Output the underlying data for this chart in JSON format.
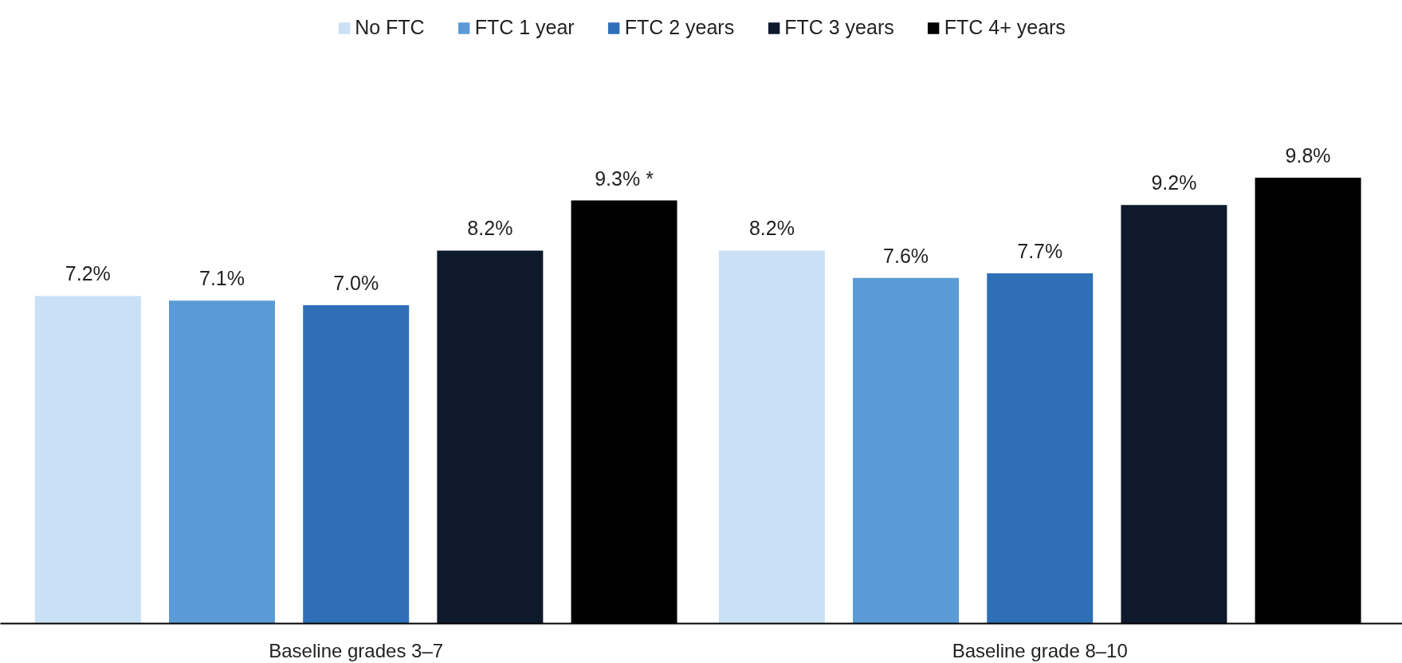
{
  "chart_data": {
    "type": "bar",
    "categories": [
      "Baseline grades 3–7",
      "Baseline grade 8–10"
    ],
    "series": [
      {
        "name": "No FTC",
        "color": "#c9e0f5",
        "values": [
          7.2,
          8.2
        ],
        "value_labels": [
          "7.2%",
          "8.2%"
        ]
      },
      {
        "name": "FTC 1 year",
        "color": "#5b9bd5",
        "values": [
          7.1,
          7.6
        ],
        "value_labels": [
          "7.1%",
          "7.6%"
        ]
      },
      {
        "name": "FTC 2 years",
        "color": "#2e6fb8",
        "values": [
          7.0,
          7.7
        ],
        "value_labels": [
          "7.0%",
          "7.7%"
        ]
      },
      {
        "name": "FTC 3 years",
        "color": "#0e1a2b",
        "values": [
          8.2,
          9.2
        ],
        "value_labels": [
          "8.2%",
          "9.2%"
        ]
      },
      {
        "name": "FTC 4+ years",
        "color": "#000000",
        "values": [
          9.3,
          9.8
        ],
        "value_labels": [
          "9.3% *",
          "9.8%"
        ]
      }
    ],
    "tick_labels": "x",
    "grid": false,
    "legend": "top"
  }
}
